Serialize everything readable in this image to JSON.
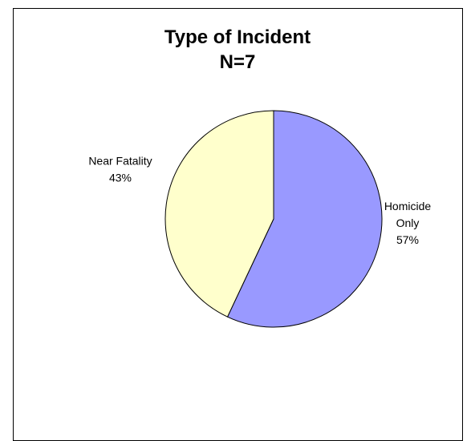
{
  "chart_data": {
    "type": "pie",
    "title": "Type of Incident",
    "subtitle": "N=7",
    "categories": [
      "Homicide Only",
      "Near Fatality"
    ],
    "values": [
      57,
      43
    ],
    "label_lines": [
      [
        "Homicide",
        "Only",
        "57%"
      ],
      [
        "Near Fatality",
        "43%"
      ]
    ],
    "colors": [
      "#9999ff",
      "#ffffcc"
    ],
    "start_angle_deg": 0,
    "direction": "clockwise",
    "legend": "none"
  }
}
